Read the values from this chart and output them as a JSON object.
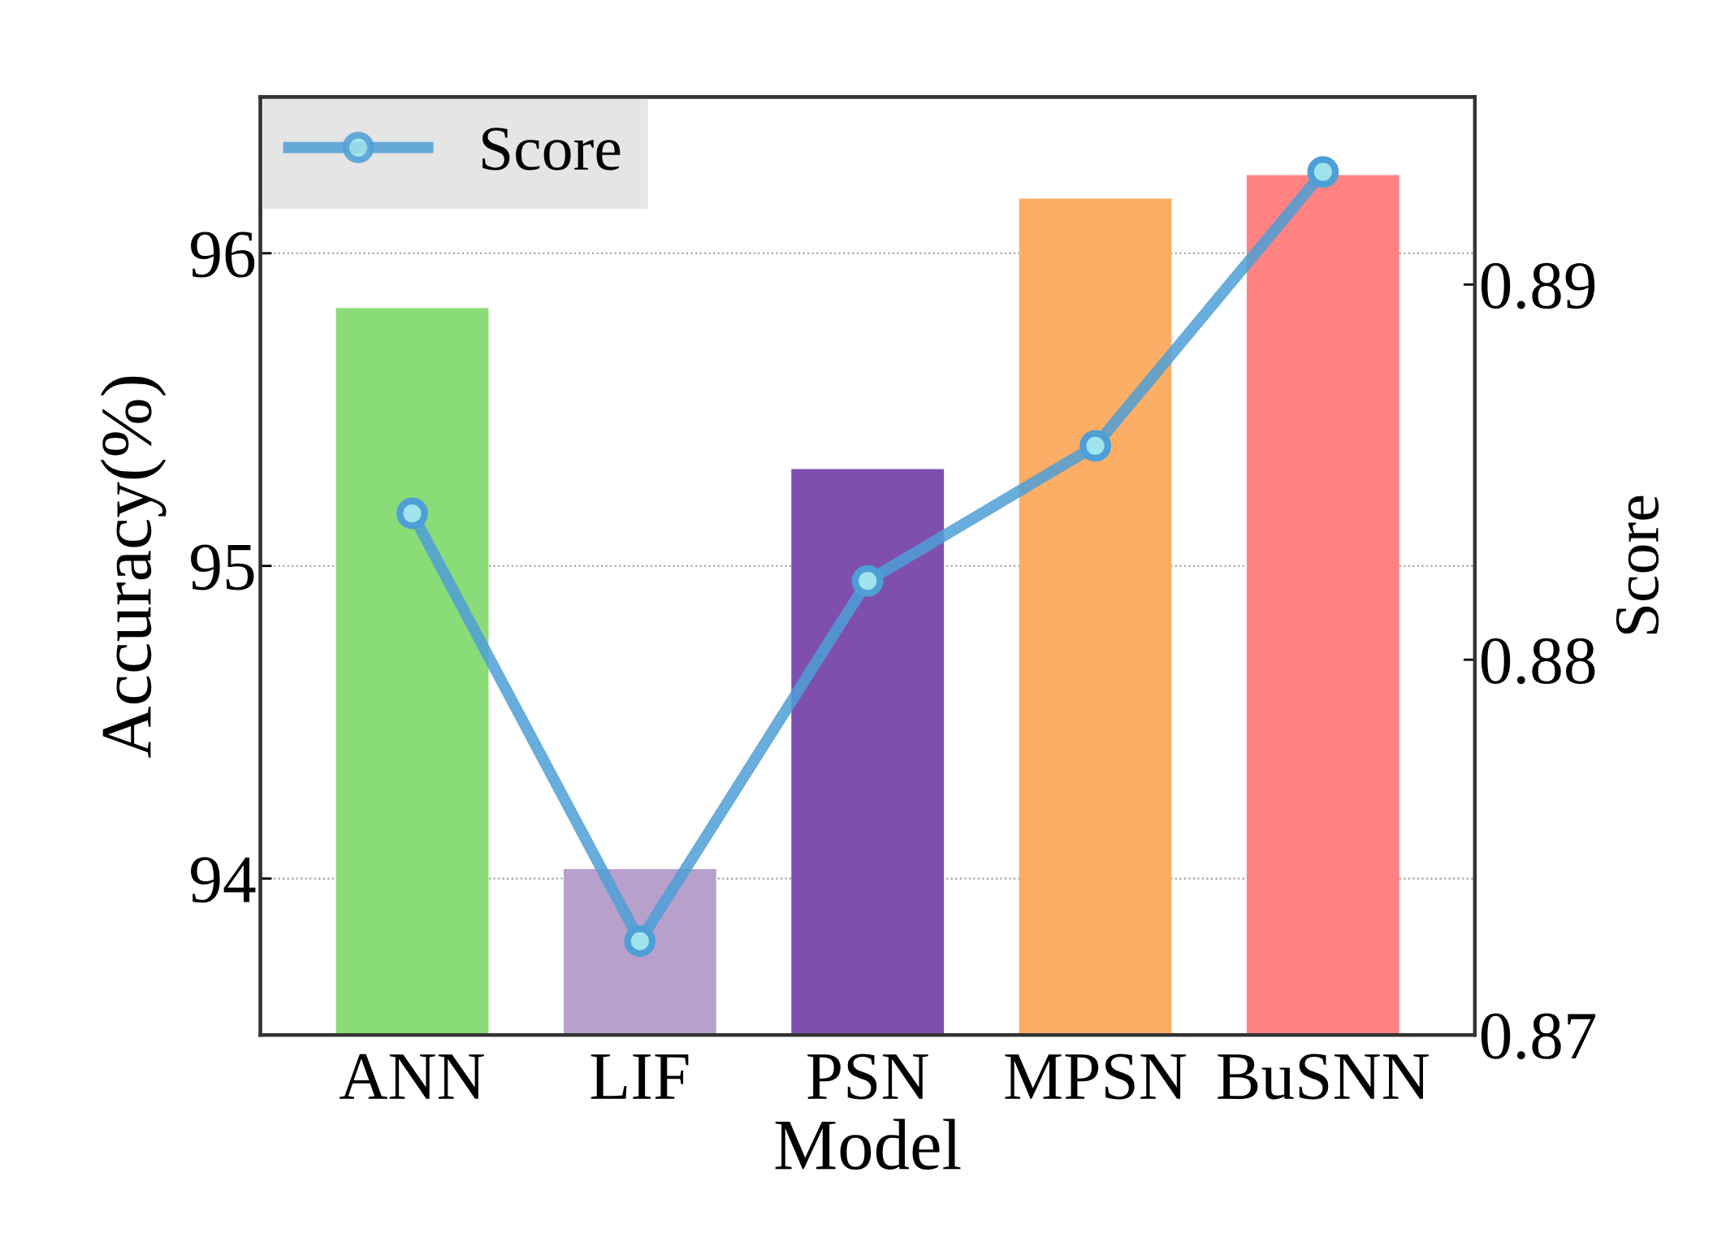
{
  "chart_data": {
    "type": "bar",
    "xlabel": "Model",
    "ylabel": "Accuracy(%)",
    "y2label": "Score",
    "categories": [
      "ANN",
      "LIF",
      "PSN",
      "MPSN",
      "BuSNN"
    ],
    "series": [
      {
        "colors": [
          "#8adc78",
          "#b8a0cc",
          "#7f4faf",
          "#fcad66",
          "#ff8383"
        ],
        "values": [
          95.825,
          94.03,
          95.31,
          96.175,
          96.25
        ]
      },
      {
        "type": "line",
        "name": "Score",
        "axis": "y2",
        "color": "#4e9fd6",
        "marker": "circle",
        "values": [
          0.8839,
          0.8725,
          0.8821,
          0.8857,
          0.893
        ]
      }
    ],
    "ylim": [
      93.5,
      96.5
    ],
    "yticks": [
      94,
      95,
      96
    ],
    "y2lim": [
      0.87,
      0.895
    ],
    "y2ticks": [
      0.87,
      0.88,
      0.89
    ],
    "grid": "y",
    "legend": "top left"
  }
}
